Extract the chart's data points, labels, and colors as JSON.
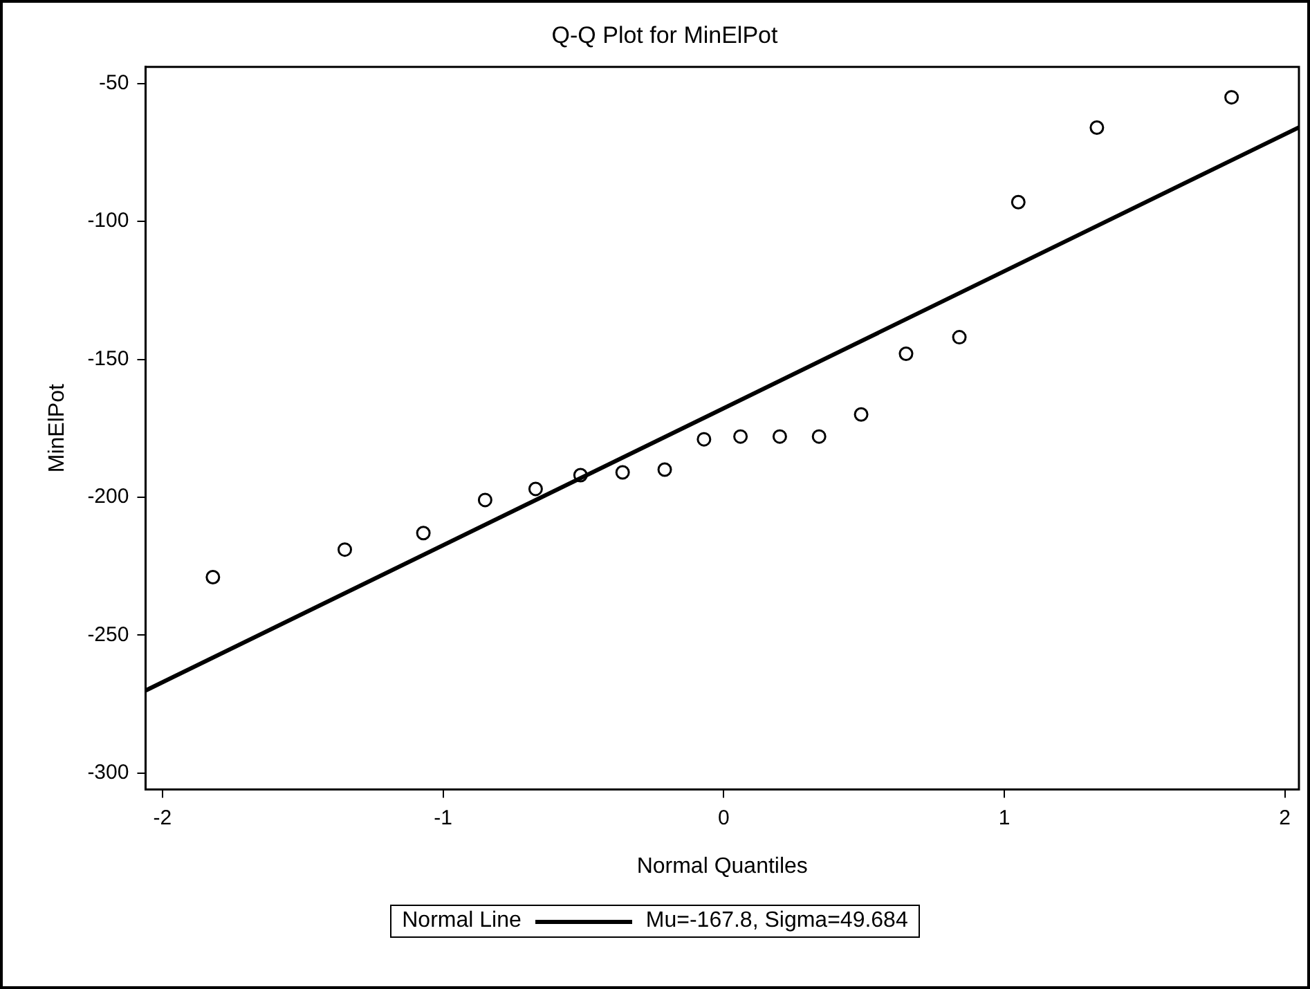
{
  "chart_data": {
    "type": "scatter",
    "title": "Q-Q Plot for MinElPot",
    "xlabel": "Normal Quantiles",
    "ylabel": "MinElPot",
    "legend_title": "Normal Line",
    "xlim": [
      -2.06,
      2.05
    ],
    "xticks": [
      -2,
      -1,
      0,
      1,
      2
    ],
    "ylim": [
      -306,
      -44
    ],
    "yticks": [
      -300,
      -250,
      -200,
      -150,
      -100,
      -50
    ],
    "grid": false,
    "legend": "bottom",
    "marker": "circle",
    "x": [
      -1.82,
      -1.35,
      -1.07,
      -0.85,
      -0.67,
      -0.51,
      -0.36,
      -0.21,
      -0.07,
      0.06,
      0.2,
      0.34,
      0.49,
      0.65,
      0.84,
      1.05,
      1.33,
      1.81
    ],
    "series": [
      {
        "color": "#000000",
        "values": [
          -229,
          -219,
          -213,
          -201,
          -197,
          -192,
          -191,
          -190,
          -179,
          -178,
          -178,
          -178,
          -170,
          -148,
          -142,
          -93,
          -66,
          -55
        ]
      },
      {
        "type": "line",
        "name": "Mu=-167.8, Sigma=49.684",
        "color": "#000000",
        "marker": "none",
        "line_style": "solid",
        "x": [
          -2.06,
          2.05
        ],
        "values": [
          -270.1,
          -65.9
        ]
      }
    ]
  }
}
